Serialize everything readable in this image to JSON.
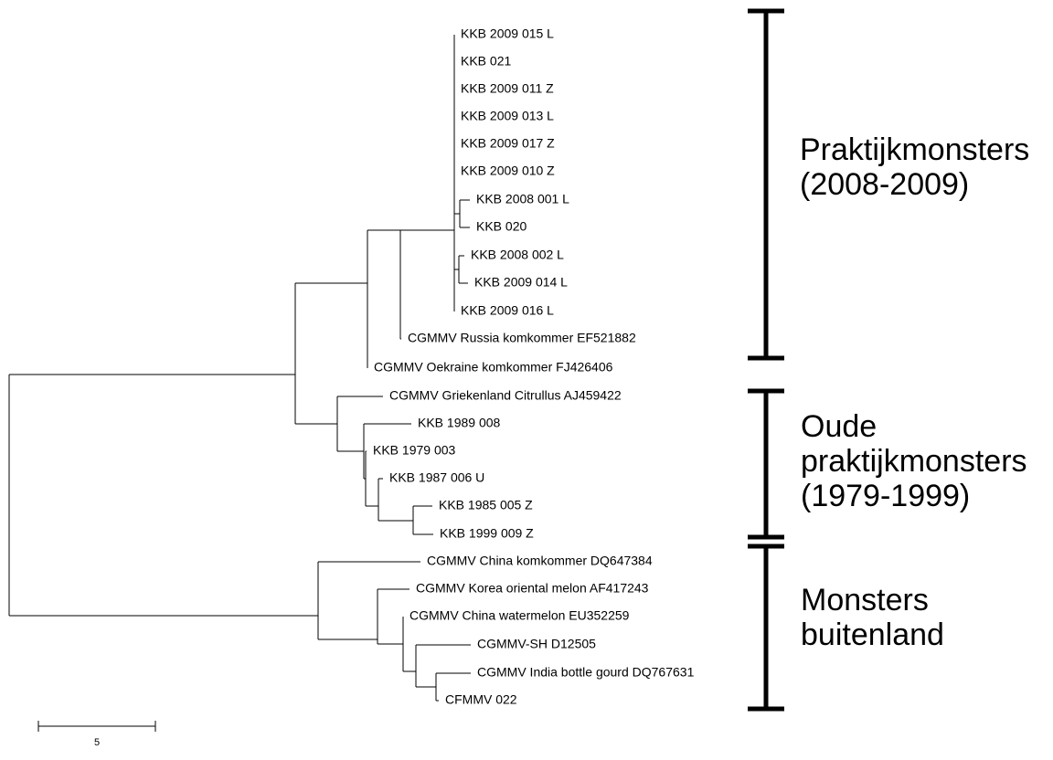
{
  "leaves": [
    "KKB 2009 015 L",
    "KKB 021",
    "KKB 2009 011 Z",
    "KKB 2009 013 L",
    "KKB 2009 017 Z",
    "KKB 2009 010 Z",
    "KKB 2008 001 L",
    "KKB 020",
    "KKB 2008 002 L",
    "KKB 2009 014 L",
    "KKB 2009 016 L",
    "CGMMV Russia komkommer EF521882",
    "CGMMV Oekraine komkommer FJ426406",
    "CGMMV Griekenland Citrullus AJ459422",
    "KKB 1989 008",
    "KKB 1979 003",
    "KKB 1987 006 U",
    "KKB 1985 005 Z",
    "KKB 1999 009 Z",
    "CGMMV China komkommer DQ647384",
    "CGMMV Korea oriental melon AF417243",
    "CGMMV China watermelon EU352259",
    "CGMMV-SH D12505",
    "CGMMV India bottle gourd DQ767631",
    "CFMMV 022"
  ],
  "groups": [
    {
      "lines": [
        "Praktijkmonsters",
        "(2008-2009)"
      ]
    },
    {
      "lines": [
        "Oude",
        "praktijkmonsters",
        "(1979-1999)"
      ]
    },
    {
      "lines": [
        "Monsters",
        "buitenland"
      ]
    }
  ],
  "scale_bar": {
    "label": "5"
  }
}
